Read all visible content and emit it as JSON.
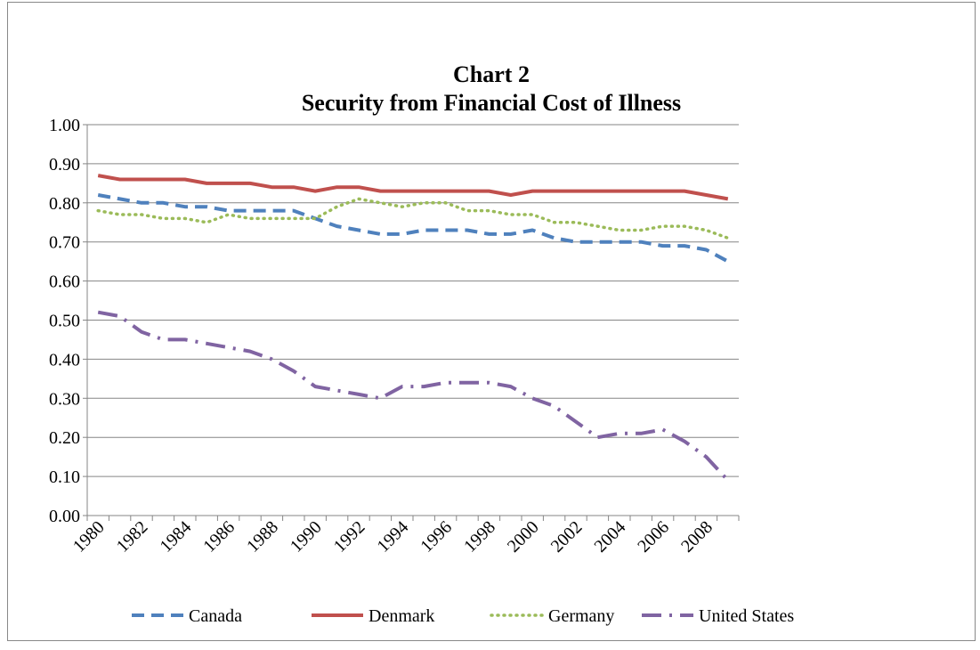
{
  "chart_data": {
    "type": "line",
    "title": "Chart 2",
    "subtitle": "Security from Financial Cost of Illness",
    "categories": [
      "1980",
      null,
      "1982",
      null,
      "1984",
      null,
      "1986",
      null,
      "1988",
      null,
      "1990",
      null,
      "1992",
      null,
      "1994",
      null,
      "1996",
      null,
      "1998",
      null,
      "2000",
      null,
      "2002",
      null,
      "2004",
      null,
      "2006",
      null,
      "2008",
      null
    ],
    "series": [
      {
        "name": "Canada",
        "color": "#4f81bd",
        "line_style": "dashed",
        "values": [
          0.82,
          0.81,
          0.8,
          0.8,
          0.79,
          0.79,
          0.78,
          0.78,
          0.78,
          0.78,
          0.76,
          0.74,
          0.73,
          0.72,
          0.72,
          0.73,
          0.73,
          0.73,
          0.72,
          0.72,
          0.73,
          0.71,
          0.7,
          0.7,
          0.7,
          0.7,
          0.69,
          0.69,
          0.68,
          0.65
        ]
      },
      {
        "name": "Denmark",
        "color": "#c0504d",
        "line_style": "solid",
        "values": [
          0.87,
          0.86,
          0.86,
          0.86,
          0.86,
          0.85,
          0.85,
          0.85,
          0.84,
          0.84,
          0.83,
          0.84,
          0.84,
          0.83,
          0.83,
          0.83,
          0.83,
          0.83,
          0.83,
          0.82,
          0.83,
          0.83,
          0.83,
          0.83,
          0.83,
          0.83,
          0.83,
          0.83,
          0.82,
          0.81
        ]
      },
      {
        "name": "Germany",
        "color": "#9bbb59",
        "line_style": "dotted",
        "values": [
          0.78,
          0.77,
          0.77,
          0.76,
          0.76,
          0.75,
          0.77,
          0.76,
          0.76,
          0.76,
          0.76,
          0.79,
          0.81,
          0.8,
          0.79,
          0.8,
          0.8,
          0.78,
          0.78,
          0.77,
          0.77,
          0.75,
          0.75,
          0.74,
          0.73,
          0.73,
          0.74,
          0.74,
          0.73,
          0.71
        ]
      },
      {
        "name": "United States",
        "color": "#8064a2",
        "line_style": "dashdot",
        "values": [
          0.52,
          0.51,
          0.47,
          0.45,
          0.45,
          0.44,
          0.43,
          0.42,
          0.4,
          0.37,
          0.33,
          0.32,
          0.31,
          0.3,
          0.33,
          0.33,
          0.34,
          0.34,
          0.34,
          0.33,
          0.3,
          0.28,
          0.24,
          0.2,
          0.21,
          0.21,
          0.22,
          0.19,
          0.15,
          0.09
        ]
      }
    ],
    "ylim": [
      0,
      1
    ],
    "yticks": [
      {
        "value": 0,
        "label": "0.00"
      },
      {
        "value": 0.1,
        "label": "0.10"
      },
      {
        "value": 0.2,
        "label": "0.20"
      },
      {
        "value": 0.3,
        "label": "0.30"
      },
      {
        "value": 0.4,
        "label": "0.40"
      },
      {
        "value": 0.5,
        "label": "0.50"
      },
      {
        "value": 0.6,
        "label": "0.60"
      },
      {
        "value": 0.7,
        "label": "0.70"
      },
      {
        "value": 0.8,
        "label": "0.80"
      },
      {
        "value": 0.9,
        "label": "0.90"
      },
      {
        "value": 1,
        "label": "1.00"
      }
    ],
    "grid": true,
    "legend": "bottom"
  }
}
